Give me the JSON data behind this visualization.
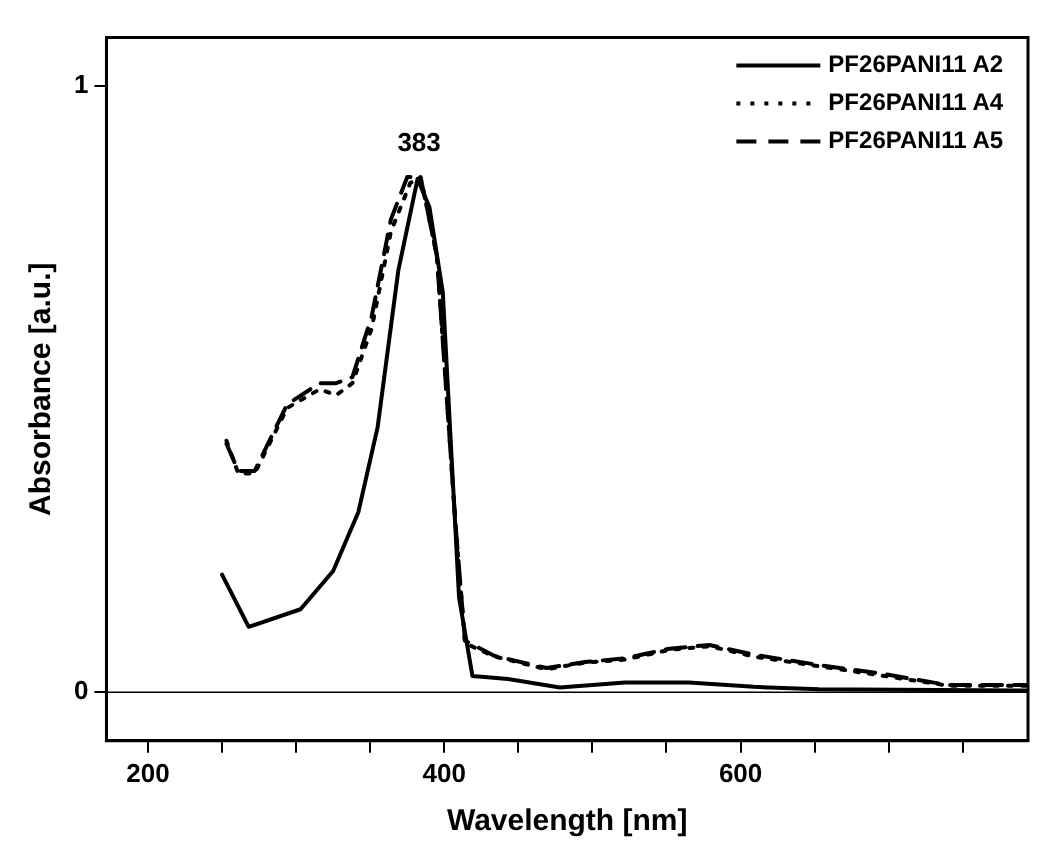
{
  "chart_data": {
    "type": "line",
    "xlabel": "Wavelength [nm]",
    "ylabel": "Absorbance [a.u.]",
    "xlim": [
      172,
      794
    ],
    "ylim": [
      -0.08,
      1.08
    ],
    "xticks": [
      200,
      {
        "value": 250,
        "label": null
      },
      {
        "value": 300,
        "label": null
      },
      {
        "value": 350,
        "label": null
      },
      400,
      {
        "value": 450,
        "label": null
      },
      {
        "value": 500,
        "label": null
      },
      {
        "value": 550,
        "label": null
      },
      600,
      {
        "value": 650,
        "label": null
      },
      {
        "value": 700,
        "label": null
      },
      {
        "value": 750,
        "label": null
      }
    ],
    "yticks": [
      0,
      1
    ],
    "grid": false,
    "legend": "top right",
    "marker": "none",
    "ref_lines": [
      {
        "axis": "y",
        "value": 0,
        "color": "#000000"
      }
    ],
    "annotations": [
      {
        "text": "383",
        "x": 383,
        "y": 0.85
      }
    ],
    "series": [
      {
        "name": "PF26PANI11 A2",
        "color": "#000000",
        "line_style": "solid",
        "x": [
          250,
          268,
          303,
          325,
          342,
          355,
          369,
          382,
          390,
          399,
          410,
          419,
          443,
          478,
          522,
          565,
          609,
          653,
          794
        ],
        "values": [
          0.194,
          0.108,
          0.137,
          0.2,
          0.297,
          0.437,
          0.696,
          0.847,
          0.8,
          0.66,
          0.156,
          0.027,
          0.022,
          0.008,
          0.016,
          0.016,
          0.009,
          0.005,
          0.003
        ]
      },
      {
        "name": "PF26PANI11 A4",
        "color": "#000000",
        "line_style": "dotted",
        "x": [
          253,
          261,
          272,
          294,
          316,
          327,
          338,
          351,
          364,
          377,
          384,
          395,
          408,
          414,
          434,
          469,
          495,
          522,
          552,
          579,
          609,
          653,
          697,
          740,
          794
        ],
        "values": [
          0.415,
          0.361,
          0.361,
          0.469,
          0.5,
          0.49,
          0.51,
          0.6,
          0.76,
          0.84,
          0.85,
          0.72,
          0.264,
          0.081,
          0.059,
          0.038,
          0.049,
          0.054,
          0.07,
          0.076,
          0.059,
          0.043,
          0.027,
          0.011,
          0.011
        ]
      },
      {
        "name": "PF26PANI11 A5",
        "color": "#000000",
        "line_style": "dashed",
        "x": [
          253,
          261,
          272,
          294,
          316,
          327,
          338,
          351,
          364,
          375,
          384,
          395,
          408,
          414,
          434,
          469,
          495,
          522,
          552,
          579,
          609,
          653,
          697,
          740,
          794
        ],
        "values": [
          0.41,
          0.365,
          0.365,
          0.475,
          0.51,
          0.51,
          0.52,
          0.62,
          0.78,
          0.85,
          0.85,
          0.72,
          0.264,
          0.085,
          0.06,
          0.04,
          0.05,
          0.056,
          0.072,
          0.078,
          0.062,
          0.045,
          0.03,
          0.012,
          0.012
        ]
      }
    ]
  }
}
